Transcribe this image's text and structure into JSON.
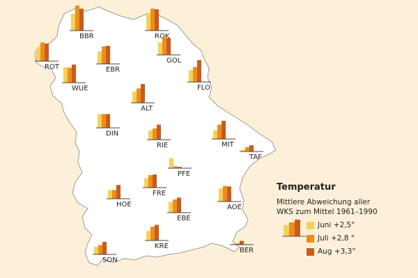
{
  "colors": {
    "juni": "#f8cf5a",
    "juli": "#ed8d1a",
    "aug": "#c85c1e",
    "land": "#ffffff",
    "background": "#fdf0d8"
  },
  "legend": {
    "title": "Temperatur",
    "line1": "Mittlere Abweichung aller",
    "line2": "WKS zum Mittel 1961–1990",
    "items": [
      {
        "label": "Juni +2,5°",
        "color": "#f8cf5a"
      },
      {
        "label": "Juli +2,8 °",
        "color": "#ed8d1a"
      },
      {
        "label": "Aug +3,3°",
        "color": "#c85c1e"
      }
    ]
  },
  "chart_data": {
    "type": "bar",
    "series_names": [
      "Juni",
      "Juli",
      "Aug"
    ],
    "units": "deviation relative to mean 1961–1990",
    "stations": [
      {
        "code": "BBR",
        "values": [
          2.7,
          4.0,
          3.5
        ]
      },
      {
        "code": "ROK",
        "values": [
          2.8,
          3.5,
          3.4
        ]
      },
      {
        "code": "ROT",
        "values": [
          2.2,
          3.0,
          2.8
        ]
      },
      {
        "code": "GOL",
        "values": [
          2.0,
          2.9,
          2.7
        ]
      },
      {
        "code": "EBR",
        "values": [
          2.0,
          2.8,
          2.9
        ]
      },
      {
        "code": "WUE",
        "values": [
          2.5,
          2.4,
          2.9
        ]
      },
      {
        "code": "FLO",
        "values": [
          1.9,
          2.4,
          3.5
        ]
      },
      {
        "code": "ALT",
        "values": [
          1.8,
          2.3,
          3.0
        ]
      },
      {
        "code": "DIN",
        "values": [
          2.2,
          2.2,
          2.2
        ]
      },
      {
        "code": "RIE",
        "values": [
          1.5,
          1.8,
          2.4
        ]
      },
      {
        "code": "MIT",
        "values": [
          1.4,
          2.3,
          2.9
        ]
      },
      {
        "code": "TAF",
        "values": [
          0.3,
          0.7,
          1.0
        ]
      },
      {
        "code": "PFE",
        "values": [
          1.6,
          0.3,
          0.2
        ]
      },
      {
        "code": "FRE",
        "values": [
          1.5,
          2.0,
          2.1
        ]
      },
      {
        "code": "HOE",
        "values": [
          1.4,
          1.4,
          2.2
        ]
      },
      {
        "code": "EBE",
        "values": [
          1.7,
          2.1,
          2.4
        ]
      },
      {
        "code": "AOE",
        "values": [
          2.1,
          2.5,
          2.4
        ]
      },
      {
        "code": "KRE",
        "values": [
          1.5,
          2.2,
          2.5
        ]
      },
      {
        "code": "SON",
        "values": [
          1.2,
          1.5,
          2.0
        ]
      },
      {
        "code": "BER",
        "values": [
          0.1,
          0.2,
          0.6
        ]
      }
    ]
  }
}
